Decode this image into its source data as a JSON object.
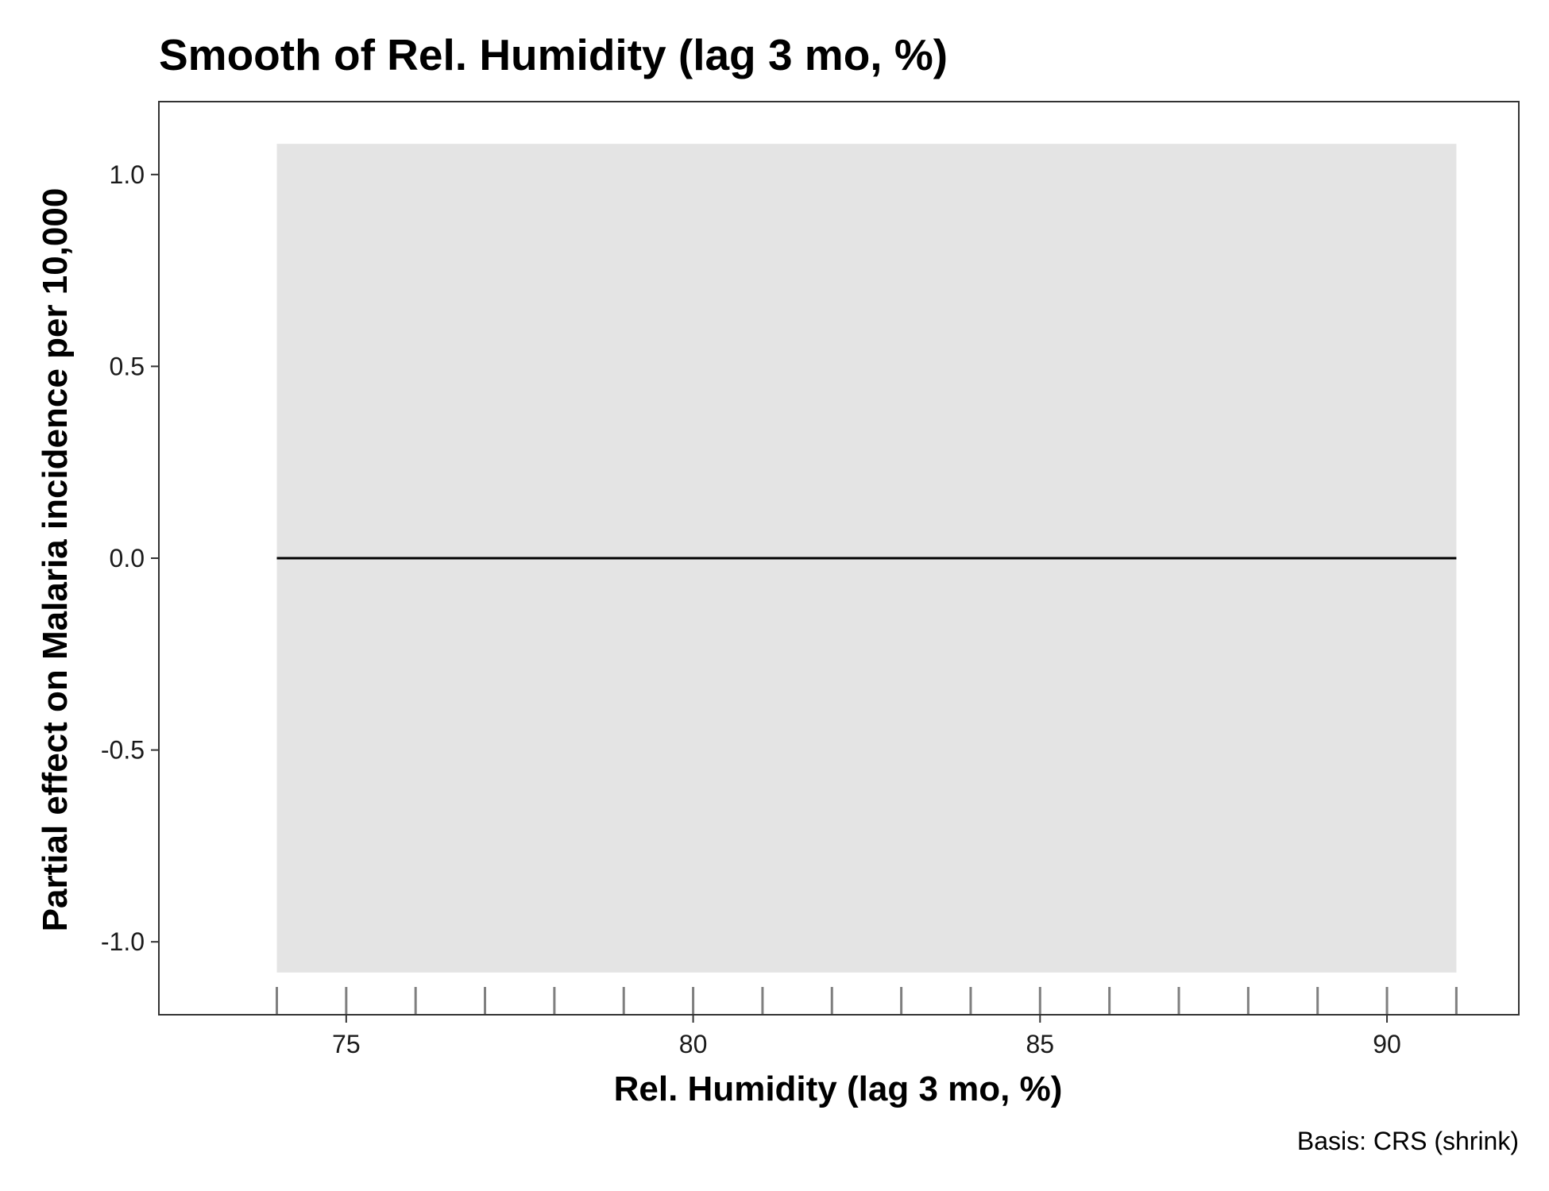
{
  "chart_data": {
    "type": "line",
    "title": "Smooth of Rel. Humidity (lag 3 mo, %)",
    "xlabel": "Rel. Humidity (lag 3 mo, %)",
    "ylabel": "Partial effect on Malaria incidence per 10,000",
    "caption": "Basis: CRS (shrink)",
    "xlim": [
      72.3,
      91.9
    ],
    "ylim": [
      -1.19,
      1.19
    ],
    "x_ticks": [
      75,
      80,
      85,
      90
    ],
    "x_tick_labels": [
      "75",
      "80",
      "85",
      "90"
    ],
    "y_ticks": [
      -1.0,
      -0.5,
      0.0,
      0.5,
      1.0
    ],
    "y_tick_labels": [
      "-1.0",
      "-0.5",
      "0.0",
      "0.5",
      "1.0"
    ],
    "grid": false,
    "series": [
      {
        "x": [
          74,
          91
        ],
        "y": [
          0.0,
          0.0
        ],
        "ci_lower": [
          -1.08,
          -1.08
        ],
        "ci_upper": [
          1.08,
          1.08
        ]
      }
    ],
    "rug": [
      74,
      75,
      76,
      77,
      78,
      79,
      80,
      81,
      82,
      83,
      84,
      85,
      86,
      87,
      88,
      89,
      90,
      91
    ],
    "colors": {
      "line": "#000000",
      "ribbon": "#e4e4e4",
      "rug": "#7f7f7f",
      "panel_border": "#333333"
    }
  }
}
